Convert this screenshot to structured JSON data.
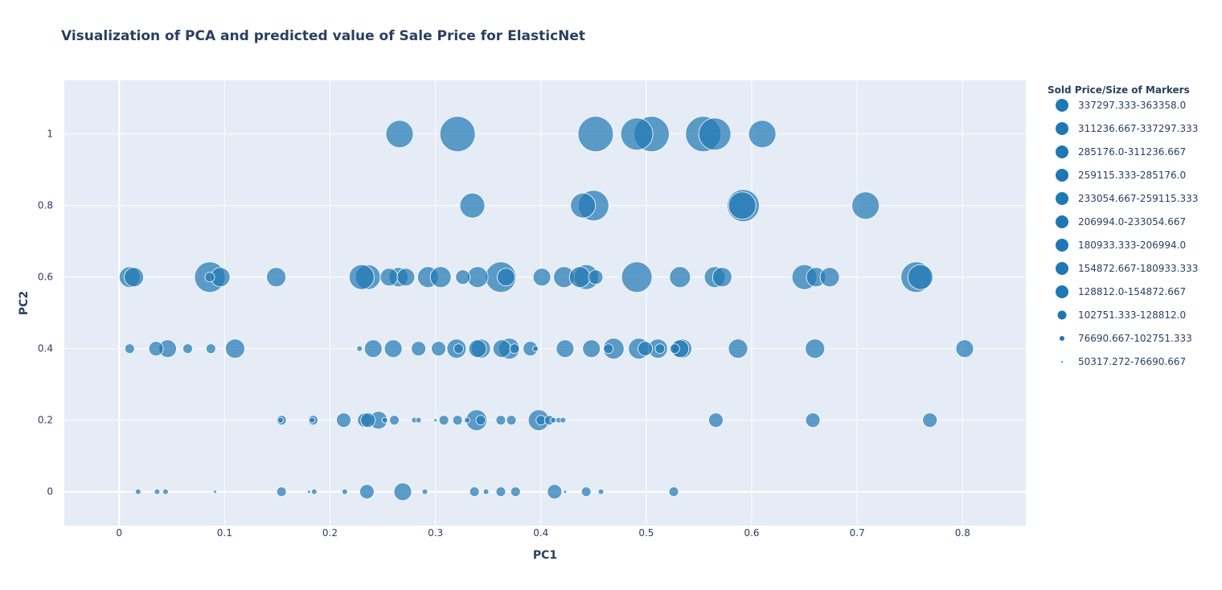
{
  "chart_data": {
    "type": "scatter",
    "title": "Visualization of PCA and predicted value of Sale Price for ElasticNet",
    "xlabel": "PC1",
    "ylabel": "PC2",
    "xlim": [
      -0.052,
      0.86
    ],
    "ylim": [
      -0.095,
      1.15
    ],
    "xticks": [
      0,
      0.1,
      0.2,
      0.3,
      0.4,
      0.5,
      0.6,
      0.7,
      0.8
    ],
    "xtick_labels": [
      "0",
      "0.1",
      "0.2",
      "0.3",
      "0.4",
      "0.5",
      "0.6",
      "0.7",
      "0.8"
    ],
    "yticks": [
      0,
      0.2,
      0.4,
      0.6,
      0.8,
      1
    ],
    "ytick_labels": [
      "0",
      "0.2",
      "0.4",
      "0.6",
      "0.8",
      "1"
    ],
    "grid": true,
    "legend_title": "Sold Price/Size of Markers",
    "legend_position": "right",
    "colors": {
      "marker": "#1f77b4",
      "plot_bg": "#e5ecf6",
      "grid": "#ffffff",
      "text": "#2a3f5f"
    },
    "series": [
      {
        "name": "337297.333-363358.0",
        "points": [
          [
            0.321,
            1.0
          ],
          [
            0.452,
            1.0
          ],
          [
            0.505,
            1.0
          ],
          [
            0.554,
            1.0
          ]
        ]
      },
      {
        "name": "311236.667-337297.333",
        "points": [
          [
            0.491,
            1.0
          ],
          [
            0.565,
            1.0
          ],
          [
            0.592,
            0.8
          ]
        ]
      },
      {
        "name": "285176.0-311236.667",
        "points": [
          [
            0.266,
            1.0
          ],
          [
            0.61,
            1.0
          ],
          [
            0.708,
            0.8
          ],
          [
            0.591,
            0.8
          ]
        ]
      },
      {
        "name": "259115.333-285176.0",
        "points": [
          [
            0.45,
            0.8
          ],
          [
            0.086,
            0.6
          ],
          [
            0.362,
            0.6
          ],
          [
            0.491,
            0.6
          ],
          [
            0.756,
            0.6
          ]
        ]
      },
      {
        "name": "233054.667-259115.333",
        "points": [
          [
            0.335,
            0.8
          ],
          [
            0.44,
            0.8
          ],
          [
            0.236,
            0.6
          ],
          [
            0.443,
            0.6
          ],
          [
            0.65,
            0.6
          ],
          [
            0.76,
            0.6
          ],
          [
            0.23,
            0.6
          ]
        ]
      },
      {
        "name": "206994.0-233054.667",
        "points": [
          [
            0.01,
            0.6
          ],
          [
            0.293,
            0.6
          ],
          [
            0.305,
            0.6
          ],
          [
            0.34,
            0.6
          ],
          [
            0.422,
            0.6
          ],
          [
            0.437,
            0.6
          ],
          [
            0.532,
            0.6
          ],
          [
            0.565,
            0.6
          ],
          [
            0.37,
            0.4
          ],
          [
            0.493,
            0.4
          ],
          [
            0.469,
            0.4
          ],
          [
            0.339,
            0.2
          ],
          [
            0.398,
            0.2
          ]
        ]
      },
      {
        "name": "180933.333-206994.0",
        "points": [
          [
            0.014,
            0.6
          ],
          [
            0.096,
            0.6
          ],
          [
            0.149,
            0.6
          ],
          [
            0.265,
            0.6
          ],
          [
            0.572,
            0.6
          ],
          [
            0.661,
            0.6
          ],
          [
            0.674,
            0.6
          ],
          [
            0.11,
            0.4
          ],
          [
            0.32,
            0.4
          ],
          [
            0.343,
            0.4
          ],
          [
            0.511,
            0.4
          ],
          [
            0.534,
            0.4
          ],
          [
            0.587,
            0.4
          ],
          [
            0.66,
            0.4
          ]
        ]
      },
      {
        "name": "154872.667-180933.333",
        "points": [
          [
            0.256,
            0.6
          ],
          [
            0.272,
            0.6
          ],
          [
            0.367,
            0.6
          ],
          [
            0.401,
            0.6
          ],
          [
            0.046,
            0.4
          ],
          [
            0.241,
            0.4
          ],
          [
            0.26,
            0.4
          ],
          [
            0.34,
            0.4
          ],
          [
            0.363,
            0.4
          ],
          [
            0.423,
            0.4
          ],
          [
            0.448,
            0.4
          ],
          [
            0.532,
            0.4
          ],
          [
            0.802,
            0.4
          ],
          [
            0.246,
            0.2
          ],
          [
            0.269,
            0.0
          ]
        ]
      },
      {
        "name": "128812.0-154872.667",
        "points": [
          [
            0.326,
            0.6
          ],
          [
            0.452,
            0.6
          ],
          [
            0.035,
            0.4
          ],
          [
            0.284,
            0.4
          ],
          [
            0.303,
            0.4
          ],
          [
            0.39,
            0.4
          ],
          [
            0.499,
            0.4
          ],
          [
            0.566,
            0.2
          ],
          [
            0.213,
            0.2
          ],
          [
            0.233,
            0.2
          ],
          [
            0.236,
            0.2
          ],
          [
            0.658,
            0.2
          ],
          [
            0.769,
            0.2
          ],
          [
            0.235,
            0.0
          ],
          [
            0.413,
            0.0
          ]
        ]
      },
      {
        "name": "102751.333-128812.0",
        "points": [
          [
            0.01,
            0.4
          ],
          [
            0.065,
            0.4
          ],
          [
            0.087,
            0.4
          ],
          [
            0.322,
            0.4
          ],
          [
            0.375,
            0.4
          ],
          [
            0.464,
            0.4
          ],
          [
            0.513,
            0.4
          ],
          [
            0.527,
            0.4
          ],
          [
            0.154,
            0.2
          ],
          [
            0.184,
            0.2
          ],
          [
            0.261,
            0.2
          ],
          [
            0.308,
            0.2
          ],
          [
            0.321,
            0.2
          ],
          [
            0.343,
            0.2
          ],
          [
            0.362,
            0.2
          ],
          [
            0.372,
            0.2
          ],
          [
            0.4,
            0.2
          ],
          [
            0.408,
            0.2
          ],
          [
            0.154,
            0.0
          ],
          [
            0.337,
            0.0
          ],
          [
            0.362,
            0.0
          ],
          [
            0.376,
            0.0
          ],
          [
            0.443,
            0.0
          ],
          [
            0.526,
            0.0
          ],
          [
            0.086,
            0.6
          ]
        ]
      },
      {
        "name": "76690.667-102751.333",
        "points": [
          [
            0.228,
            0.4
          ],
          [
            0.395,
            0.4
          ],
          [
            0.153,
            0.2
          ],
          [
            0.183,
            0.2
          ],
          [
            0.252,
            0.2
          ],
          [
            0.28,
            0.2
          ],
          [
            0.284,
            0.2
          ],
          [
            0.33,
            0.2
          ],
          [
            0.412,
            0.2
          ],
          [
            0.417,
            0.2
          ],
          [
            0.421,
            0.2
          ],
          [
            0.018,
            0.0
          ],
          [
            0.036,
            0.0
          ],
          [
            0.044,
            0.0
          ],
          [
            0.185,
            0.0
          ],
          [
            0.214,
            0.0
          ],
          [
            0.29,
            0.0
          ],
          [
            0.348,
            0.0
          ],
          [
            0.457,
            0.0
          ]
        ]
      },
      {
        "name": "50317.272-76690.667",
        "points": [
          [
            0.3,
            0.2
          ],
          [
            0.091,
            0.0
          ],
          [
            0.18,
            0.0
          ],
          [
            0.423,
            0.0
          ]
        ]
      }
    ],
    "series_marker_radius": [
      22,
      20,
      17,
      19,
      15.5,
      13,
      12,
      11,
      9,
      6,
      3.5,
      2
    ],
    "legend_marker_radius": [
      8,
      8,
      8,
      8,
      8,
      8,
      8,
      8,
      8,
      5.5,
      3,
      1
    ]
  }
}
